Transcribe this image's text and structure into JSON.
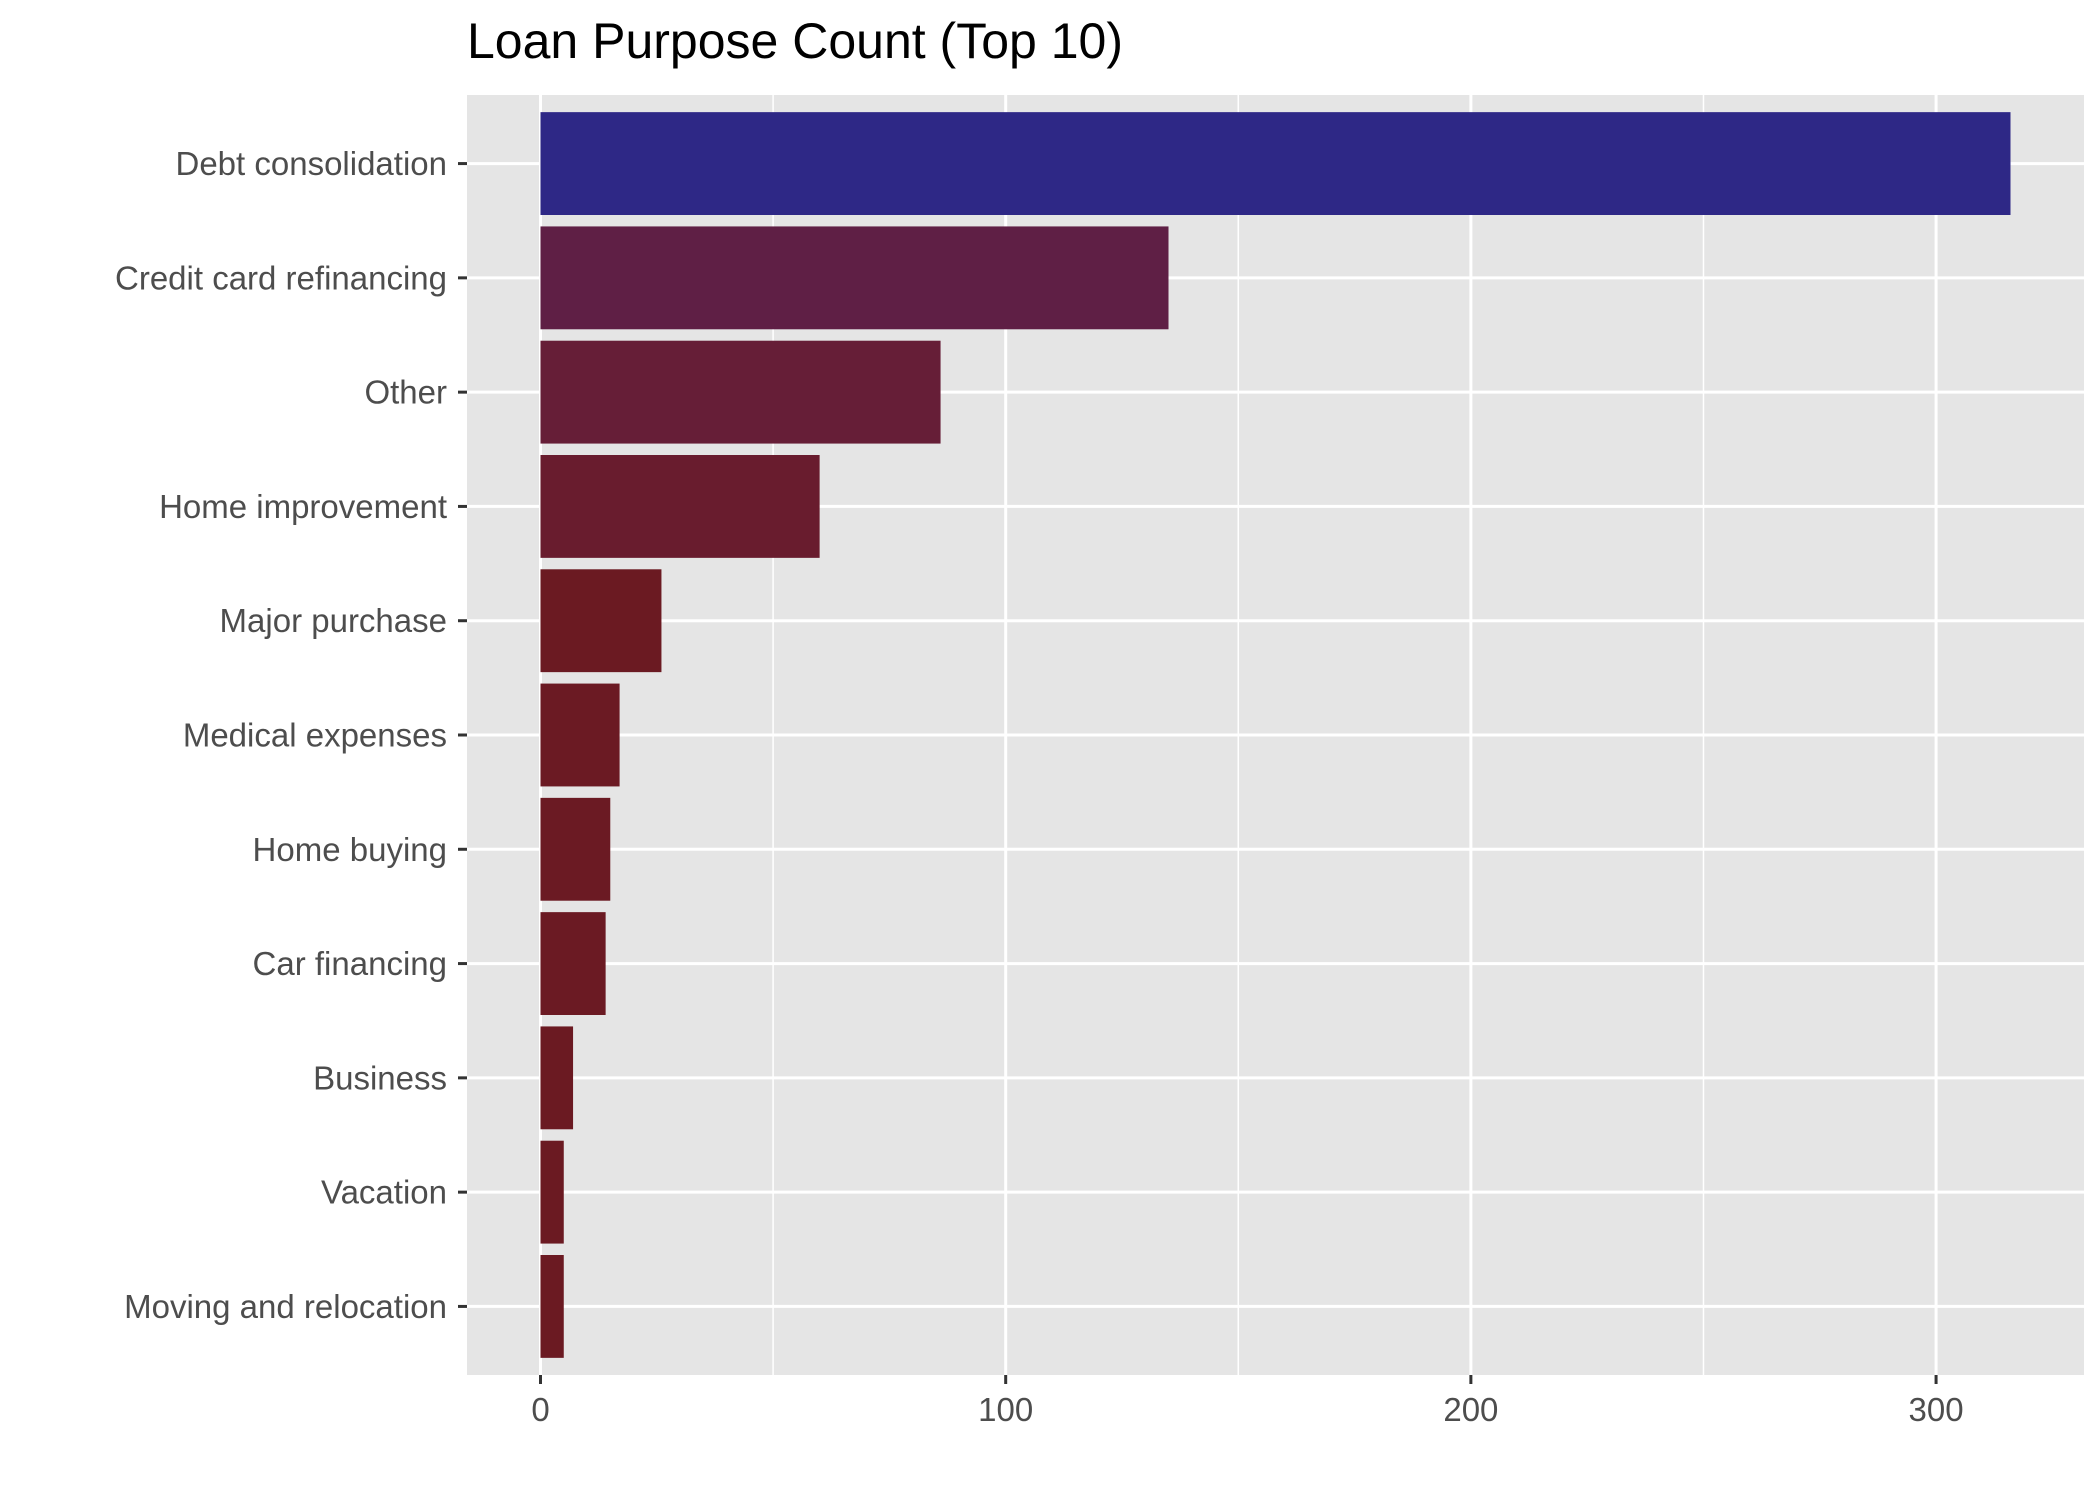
{
  "chart_data": {
    "type": "bar",
    "orientation": "horizontal",
    "title": "Loan Purpose Count (Top 10)",
    "xlabel": "",
    "ylabel": "",
    "categories": [
      "Debt consolidation",
      "Credit card refinancing",
      "Other",
      "Home improvement",
      "Major purchase",
      "Medical expenses",
      "Home buying",
      "Car financing",
      "Business",
      "Vacation",
      "Moving and relocation"
    ],
    "values": [
      316,
      135,
      86,
      60,
      26,
      17,
      15,
      14,
      7,
      5,
      5
    ],
    "bar_colors": [
      "#2e2886",
      "#5f1f45",
      "#661e37",
      "#691c2e",
      "#6b1a22",
      "#6b1a23",
      "#6b1a23",
      "#6b1a23",
      "#6b1a22",
      "#6b1a22",
      "#6b1a22"
    ],
    "x_ticks": [
      0,
      100,
      200,
      300
    ],
    "xlim": [
      -15.8,
      331.8
    ],
    "grid": true,
    "panel_background": "#e5e5e5",
    "grid_color": "#ffffff"
  }
}
